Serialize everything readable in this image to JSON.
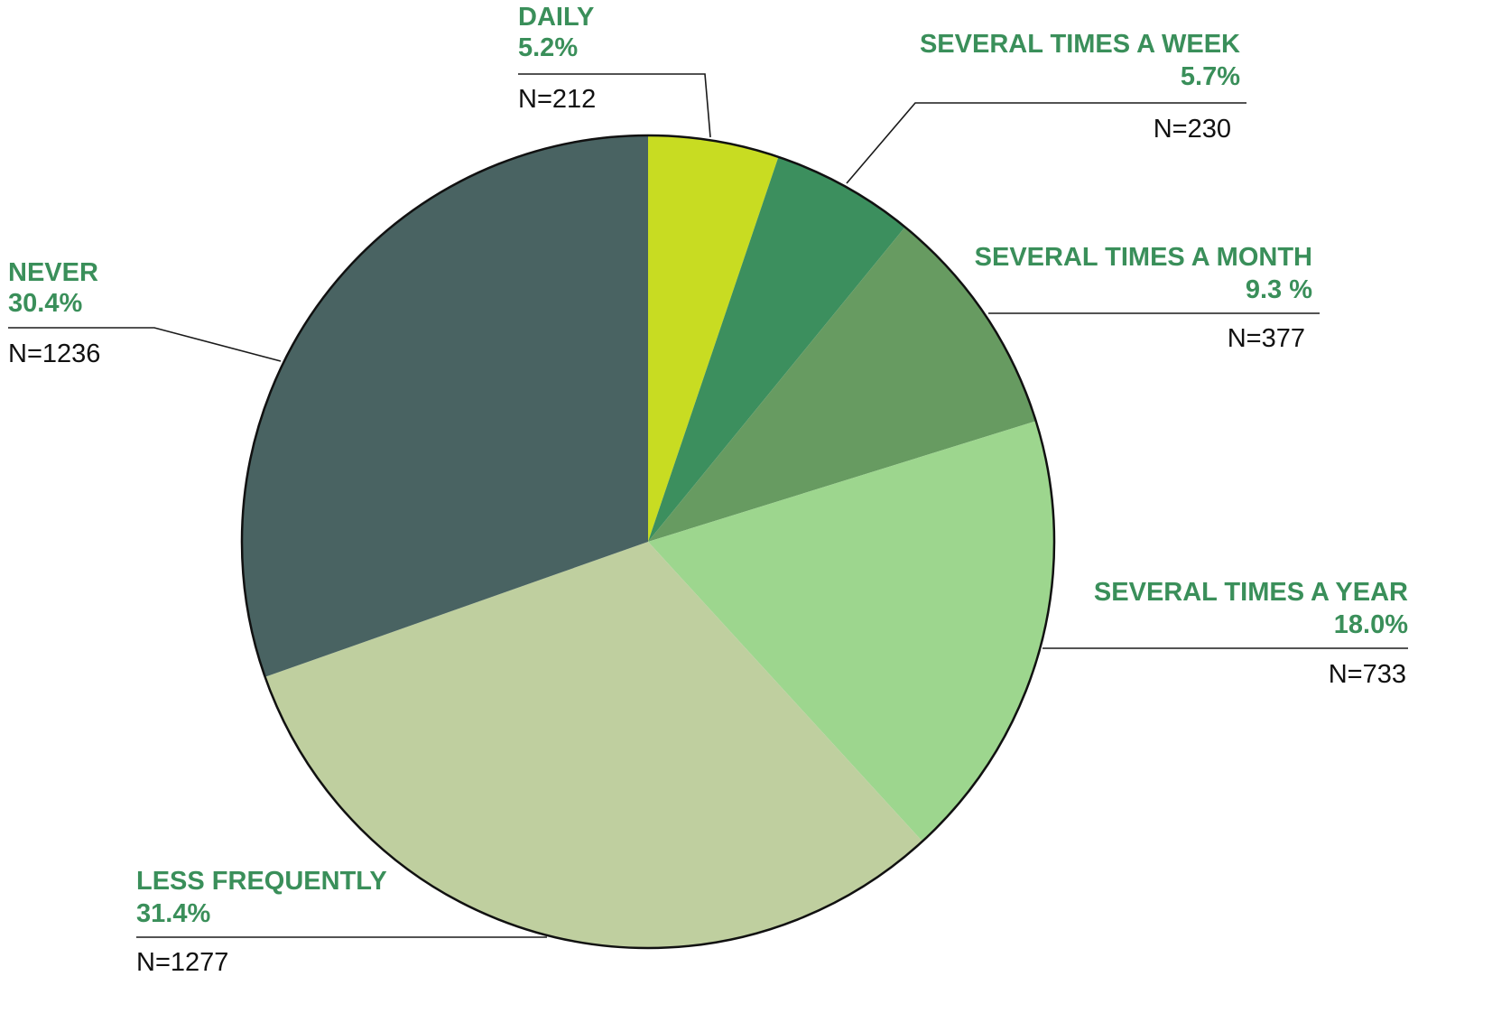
{
  "chart_data": {
    "type": "pie",
    "label_color": "#3a8f5a",
    "slices": [
      {
        "label": "DAILY",
        "percent_label": "5.2%",
        "value": 5.2,
        "n_label": "N=212",
        "n": 212,
        "color": "#c8dc22"
      },
      {
        "label": "SEVERAL TIMES A WEEK",
        "percent_label": "5.7%",
        "value": 5.7,
        "n_label": "N=230",
        "n": 230,
        "color": "#3c8f5e"
      },
      {
        "label": "SEVERAL TIMES A MONTH",
        "percent_label": "9.3 %",
        "value": 9.3,
        "n_label": "N=377",
        "n": 377,
        "color": "#679b61"
      },
      {
        "label": "SEVERAL TIMES A YEAR",
        "percent_label": "18.0%",
        "value": 18.0,
        "n_label": "N=733",
        "n": 733,
        "color": "#9dd68e"
      },
      {
        "label": "LESS FREQUENTLY",
        "percent_label": "31.4%",
        "value": 31.4,
        "n_label": "N=1277",
        "n": 1277,
        "color": "#bfcf9f"
      },
      {
        "label": "NEVER",
        "percent_label": "30.4%",
        "value": 30.4,
        "n_label": "N=1236",
        "n": 1236,
        "color": "#496362"
      }
    ]
  }
}
